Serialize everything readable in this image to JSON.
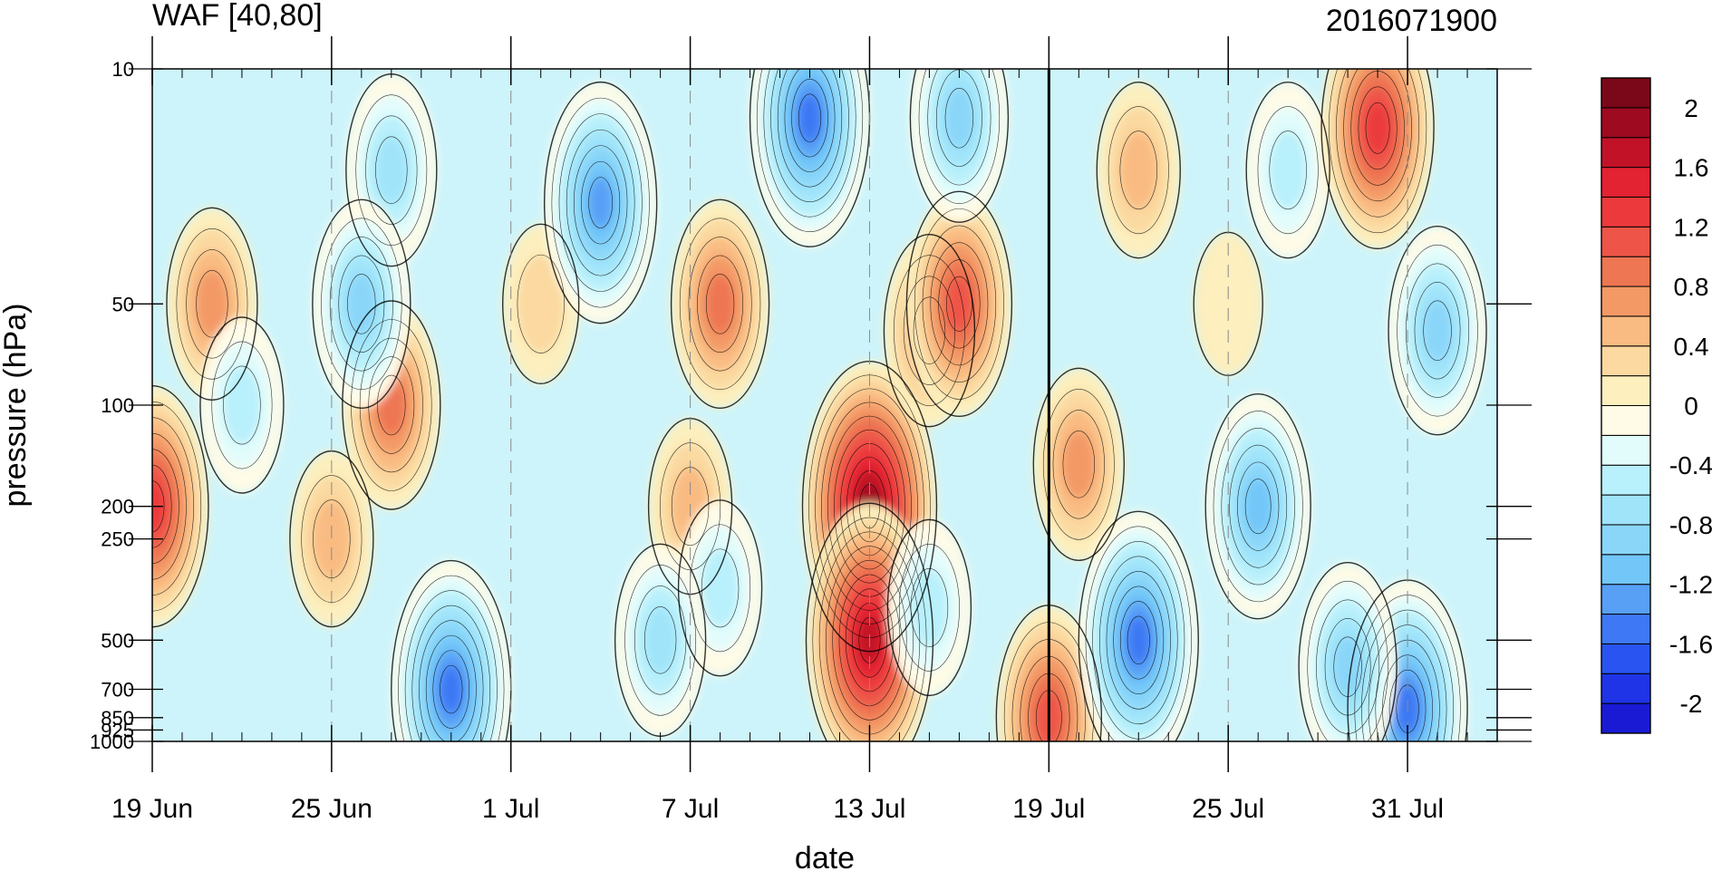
{
  "chart_data": {
    "type": "heatmap",
    "title": "WAF [40,80]",
    "subtitle": "2016071900",
    "xlabel": "date",
    "ylabel": "pressure (hPa)",
    "x_ticks": [
      {
        "date": "2016-06-19",
        "label": "19 Jun"
      },
      {
        "date": "2016-06-25",
        "label": "25 Jun"
      },
      {
        "date": "2016-07-01",
        "label": "1 Jul"
      },
      {
        "date": "2016-07-07",
        "label": "7 Jul"
      },
      {
        "date": "2016-07-13",
        "label": "13 Jul"
      },
      {
        "date": "2016-07-19",
        "label": "19 Jul"
      },
      {
        "date": "2016-07-25",
        "label": "25 Jul"
      },
      {
        "date": "2016-07-31",
        "label": "31 Jul"
      }
    ],
    "xlim": [
      "2016-06-19",
      "2016-08-03"
    ],
    "y_scale": "log",
    "y_ticks": [
      {
        "value": 10,
        "label": "10"
      },
      {
        "value": 50,
        "label": "50"
      },
      {
        "value": 100,
        "label": "100"
      },
      {
        "value": 200,
        "label": "200"
      },
      {
        "value": 250,
        "label": "250"
      },
      {
        "value": 500,
        "label": "500"
      },
      {
        "value": 700,
        "label": "700"
      },
      {
        "value": 850,
        "label": "850"
      },
      {
        "value": 925,
        "label": "925"
      },
      {
        "value": 1000,
        "label": "1000"
      }
    ],
    "ylim": [
      1000,
      10
    ],
    "marker_date": "2016-07-19",
    "colorbar": {
      "levels": [
        -2.2,
        -2,
        -1.8,
        -1.6,
        -1.4,
        -1.2,
        -1,
        -0.8,
        -0.6,
        -0.4,
        -0.2,
        0,
        0.2,
        0.4,
        0.6,
        0.8,
        1,
        1.2,
        1.4,
        1.6,
        1.8,
        2,
        2.2
      ],
      "colors": [
        "#1a1ad4",
        "#1e34e6",
        "#2a54f2",
        "#3e78f4",
        "#58a0f6",
        "#72c6f8",
        "#8ad6f9",
        "#a0e4fa",
        "#b8f0fb",
        "#e2fcfc",
        "#fffbe6",
        "#fdefbe",
        "#fbd9a0",
        "#f9bb82",
        "#f39966",
        "#ee7652",
        "#ee5548",
        "#ec3a3c",
        "#e32232",
        "#c21228",
        "#9e0a20",
        "#7a0818"
      ],
      "labels": [
        {
          "value": 2,
          "label": "2"
        },
        {
          "value": 1.6,
          "label": "1.6"
        },
        {
          "value": 1.2,
          "label": "1.2"
        },
        {
          "value": 0.8,
          "label": "0.8"
        },
        {
          "value": 0.4,
          "label": "0.4"
        },
        {
          "value": 0,
          "label": "0"
        },
        {
          "value": -0.4,
          "label": "-0.4"
        },
        {
          "value": -0.8,
          "label": "-0.8"
        },
        {
          "value": -1.2,
          "label": "-1.2"
        },
        {
          "value": -1.6,
          "label": "-1.6"
        },
        {
          "value": -2,
          "label": "-2"
        }
      ]
    },
    "field_features": [
      {
        "date": "2016-06-21",
        "p": 50,
        "value": 0.8
      },
      {
        "date": "2016-06-19",
        "p": 200,
        "value": 1.4
      },
      {
        "date": "2016-06-27",
        "p": 100,
        "value": 0.9
      },
      {
        "date": "2016-06-25",
        "p": 250,
        "value": 0.7
      },
      {
        "date": "2016-06-22",
        "p": 100,
        "value": -0.6
      },
      {
        "date": "2016-06-27",
        "p": 20,
        "value": -0.8
      },
      {
        "date": "2016-06-26",
        "p": 50,
        "value": -0.9
      },
      {
        "date": "2016-06-29",
        "p": 700,
        "value": -1.5
      },
      {
        "date": "2016-07-02",
        "p": 50,
        "value": 0.4
      },
      {
        "date": "2016-07-04",
        "p": 25,
        "value": -1.3
      },
      {
        "date": "2016-07-08",
        "p": 50,
        "value": 0.9
      },
      {
        "date": "2016-07-07",
        "p": 200,
        "value": 0.6
      },
      {
        "date": "2016-07-08",
        "p": 350,
        "value": -0.7
      },
      {
        "date": "2016-07-06",
        "p": 500,
        "value": -0.8
      },
      {
        "date": "2016-07-11",
        "p": 14,
        "value": -1.5
      },
      {
        "date": "2016-07-13",
        "p": 200,
        "value": 2.0
      },
      {
        "date": "2016-07-13",
        "p": 500,
        "value": 1.8
      },
      {
        "date": "2016-07-15",
        "p": 60,
        "value": 0.8
      },
      {
        "date": "2016-07-16",
        "p": 50,
        "value": 1.1
      },
      {
        "date": "2016-07-15",
        "p": 400,
        "value": -0.7
      },
      {
        "date": "2016-07-16",
        "p": 14,
        "value": -1.0
      },
      {
        "date": "2016-07-19",
        "p": 850,
        "value": 1.2
      },
      {
        "date": "2016-07-20",
        "p": 150,
        "value": 0.8
      },
      {
        "date": "2016-07-22",
        "p": 500,
        "value": -1.5
      },
      {
        "date": "2016-07-22",
        "p": 20,
        "value": 0.7
      },
      {
        "date": "2016-07-25",
        "p": 50,
        "value": 0.1
      },
      {
        "date": "2016-07-26",
        "p": 200,
        "value": -1.2
      },
      {
        "date": "2016-07-27",
        "p": 20,
        "value": -0.6
      },
      {
        "date": "2016-07-30",
        "p": 15,
        "value": 1.3
      },
      {
        "date": "2016-07-31",
        "p": 800,
        "value": -1.6
      },
      {
        "date": "2016-08-01",
        "p": 60,
        "value": -0.9
      },
      {
        "date": "2016-07-29",
        "p": 600,
        "value": -1.0
      }
    ]
  }
}
